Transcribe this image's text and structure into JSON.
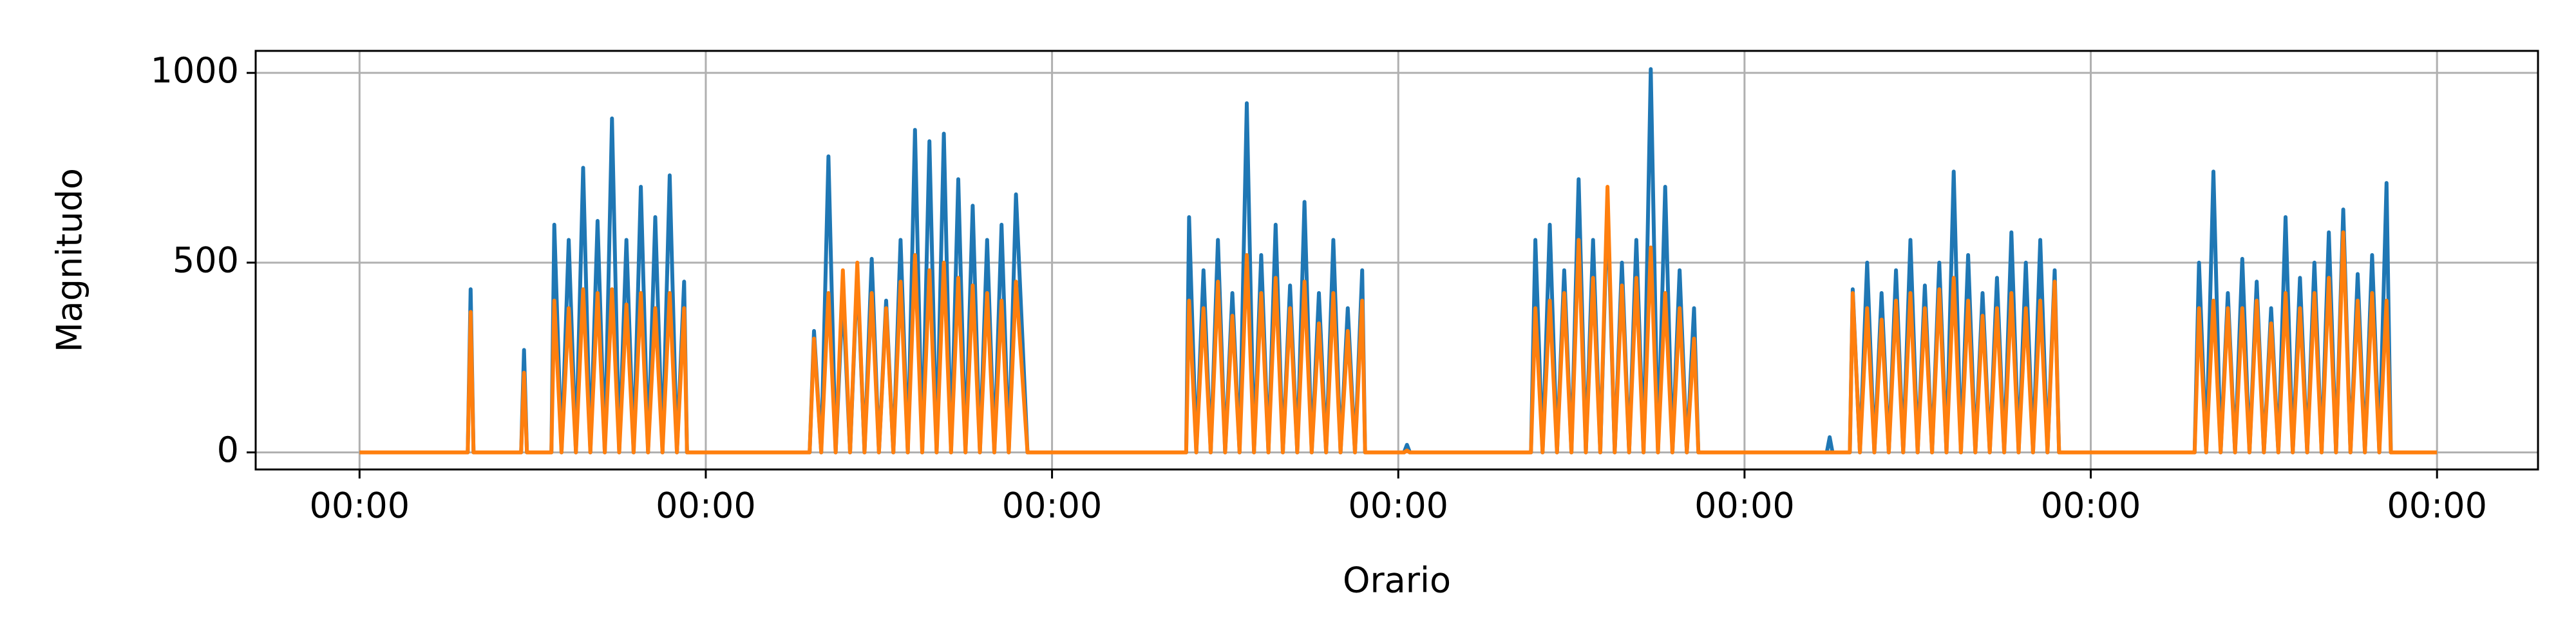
{
  "chart_data": {
    "type": "line",
    "xlabel": "Orario",
    "ylabel": "Magnitudo",
    "xlim": [
      -7.2,
      151
    ],
    "ylim": [
      -45,
      1058
    ],
    "xticks": [
      {
        "value": 0,
        "label": "00:00"
      },
      {
        "value": 24,
        "label": "00:00"
      },
      {
        "value": 48,
        "label": "00:00"
      },
      {
        "value": 72,
        "label": "00:00"
      },
      {
        "value": 96,
        "label": "00:00"
      },
      {
        "value": 120,
        "label": "00:00"
      },
      {
        "value": 144,
        "label": "00:00"
      }
    ],
    "yticks": [
      0,
      500,
      1000
    ],
    "grid": true,
    "x": [
      0,
      7.5,
      7.7,
      7.9,
      11.2,
      11.4,
      11.6,
      13.3,
      13.5,
      14,
      14.5,
      15,
      15.5,
      16,
      16.5,
      17,
      17.5,
      18,
      18.5,
      19,
      19.5,
      20,
      20.5,
      21,
      21.5,
      22,
      22.5,
      22.7,
      31.2,
      31.5,
      32,
      32.5,
      33,
      33.5,
      34,
      34.5,
      35,
      35.5,
      36,
      36.5,
      37,
      37.5,
      38,
      38.5,
      39,
      39.5,
      40,
      40.5,
      41,
      41.5,
      42,
      42.5,
      43,
      43.5,
      44,
      44.5,
      45,
      45.5,
      46.3,
      57.3,
      57.5,
      58,
      58.5,
      59,
      59.5,
      60,
      60.5,
      61,
      61.5,
      62,
      62.5,
      63,
      63.5,
      64,
      64.5,
      65,
      65.5,
      66,
      66.5,
      67,
      67.5,
      68,
      68.5,
      69,
      69.5,
      69.7,
      72.4,
      72.6,
      72.8,
      81.2,
      81.5,
      82,
      82.5,
      83,
      83.5,
      84,
      84.5,
      85,
      85.5,
      86,
      86.5,
      87,
      87.5,
      88,
      88.5,
      89,
      89.5,
      90,
      90.5,
      91,
      91.5,
      92,
      92.5,
      92.8,
      101.7,
      101.9,
      102.1,
      103.3,
      103.5,
      104,
      104.5,
      105,
      105.5,
      106,
      106.5,
      107,
      107.5,
      108,
      108.5,
      109,
      109.5,
      110,
      110.5,
      111,
      111.5,
      112,
      112.5,
      113,
      113.5,
      114,
      114.5,
      115,
      115.5,
      116,
      116.5,
      117,
      117.5,
      117.8,
      127.2,
      127.5,
      128,
      128.5,
      129,
      129.5,
      130,
      130.5,
      131,
      131.5,
      132,
      132.5,
      133,
      133.5,
      134,
      134.5,
      135,
      135.5,
      136,
      136.5,
      137,
      137.5,
      138,
      138.5,
      139,
      139.5,
      140,
      140.5,
      140.8,
      144
    ],
    "series": [
      {
        "color": "#1f77b4",
        "values": [
          0,
          0,
          430,
          0,
          0,
          270,
          0,
          0,
          600,
          0,
          560,
          0,
          750,
          0,
          610,
          0,
          880,
          0,
          560,
          0,
          700,
          0,
          620,
          0,
          730,
          0,
          450,
          0,
          0,
          320,
          0,
          780,
          0,
          420,
          0,
          480,
          0,
          510,
          0,
          400,
          0,
          560,
          0,
          850,
          0,
          820,
          0,
          840,
          0,
          720,
          0,
          650,
          0,
          560,
          0,
          600,
          0,
          680,
          0,
          0,
          620,
          0,
          480,
          0,
          560,
          0,
          420,
          0,
          920,
          0,
          520,
          0,
          600,
          0,
          440,
          0,
          660,
          0,
          420,
          0,
          560,
          0,
          380,
          0,
          480,
          0,
          0,
          20,
          0,
          0,
          560,
          0,
          600,
          0,
          480,
          0,
          720,
          0,
          560,
          0,
          660,
          0,
          500,
          0,
          560,
          0,
          1010,
          0,
          700,
          0,
          480,
          0,
          380,
          0,
          0,
          40,
          0,
          0,
          430,
          0,
          500,
          0,
          420,
          0,
          480,
          0,
          560,
          0,
          440,
          0,
          500,
          0,
          740,
          0,
          520,
          0,
          420,
          0,
          460,
          0,
          580,
          0,
          500,
          0,
          560,
          0,
          480,
          0,
          0,
          500,
          0,
          740,
          0,
          420,
          0,
          510,
          0,
          450,
          0,
          380,
          0,
          620,
          0,
          460,
          0,
          500,
          0,
          580,
          0,
          640,
          0,
          470,
          0,
          520,
          0,
          710,
          0,
          0
        ]
      },
      {
        "color": "#ff7f0e",
        "values": [
          0,
          0,
          370,
          0,
          0,
          210,
          0,
          0,
          400,
          0,
          380,
          0,
          430,
          0,
          420,
          0,
          430,
          0,
          390,
          0,
          420,
          0,
          380,
          0,
          420,
          0,
          380,
          0,
          0,
          300,
          0,
          420,
          0,
          480,
          0,
          500,
          0,
          420,
          0,
          380,
          0,
          450,
          0,
          520,
          0,
          480,
          0,
          500,
          0,
          460,
          0,
          440,
          0,
          420,
          0,
          400,
          0,
          450,
          0,
          0,
          400,
          0,
          380,
          0,
          450,
          0,
          360,
          0,
          520,
          0,
          420,
          0,
          460,
          0,
          380,
          0,
          450,
          0,
          340,
          0,
          420,
          0,
          320,
          0,
          400,
          0,
          0,
          5,
          0,
          0,
          380,
          0,
          400,
          0,
          420,
          0,
          560,
          0,
          460,
          0,
          700,
          0,
          440,
          0,
          460,
          0,
          540,
          0,
          420,
          0,
          380,
          0,
          300,
          0,
          0,
          0,
          0,
          0,
          420,
          0,
          380,
          0,
          350,
          0,
          400,
          0,
          420,
          0,
          380,
          0,
          430,
          0,
          460,
          0,
          400,
          0,
          360,
          0,
          380,
          0,
          420,
          0,
          380,
          0,
          400,
          0,
          450,
          0,
          0,
          380,
          0,
          400,
          0,
          380,
          0,
          380,
          0,
          400,
          0,
          340,
          0,
          420,
          0,
          380,
          0,
          420,
          0,
          460,
          0,
          580,
          0,
          400,
          0,
          420,
          0,
          400,
          0,
          0
        ]
      }
    ]
  }
}
